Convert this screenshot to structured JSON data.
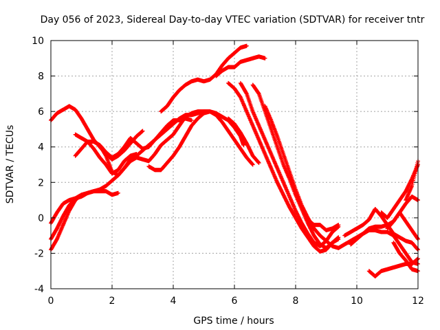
{
  "chart_data": {
    "type": "scatter",
    "title": "Day 056 of 2023, Sidereal Day-to-day VTEC variation (SDTVAR) for receiver tntr",
    "xlabel": "GPS time / hours",
    "ylabel": "SDTVAR / TECUs",
    "xlim": [
      0,
      12
    ],
    "ylim": [
      -4,
      10
    ],
    "x_ticks": [
      0,
      2,
      4,
      6,
      8,
      10,
      12
    ],
    "y_ticks": [
      -4,
      -2,
      0,
      2,
      4,
      6,
      8,
      10
    ],
    "x_tick_labels": [
      "0",
      "2",
      "4",
      "6",
      "8",
      "10",
      "12"
    ],
    "y_tick_labels": [
      "-4",
      "-2",
      "0",
      "2",
      "4",
      "6",
      "8",
      "10"
    ],
    "grid": true,
    "marker": "+",
    "marker_color": "#ff0000",
    "series": [
      {
        "points": [
          [
            0.0,
            5.5
          ],
          [
            0.2,
            5.9
          ],
          [
            0.4,
            6.1
          ],
          [
            0.6,
            6.3
          ],
          [
            0.8,
            6.1
          ],
          [
            1.0,
            5.6
          ],
          [
            1.2,
            5.0
          ],
          [
            1.4,
            4.4
          ],
          [
            1.6,
            4.0
          ],
          [
            1.8,
            3.6
          ],
          [
            2.0,
            3.3
          ],
          [
            2.2,
            3.5
          ],
          [
            2.4,
            3.8
          ],
          [
            2.6,
            4.2
          ],
          [
            2.8,
            4.6
          ],
          [
            3.0,
            4.9
          ]
        ]
      },
      {
        "points": [
          [
            0.0,
            -1.2
          ],
          [
            0.2,
            -0.6
          ],
          [
            0.4,
            0.1
          ],
          [
            0.6,
            0.7
          ],
          [
            0.8,
            1.1
          ],
          [
            1.0,
            1.3
          ],
          [
            1.2,
            1.4
          ],
          [
            1.4,
            1.5
          ],
          [
            1.6,
            1.5
          ],
          [
            1.8,
            1.5
          ],
          [
            2.0,
            1.3
          ],
          [
            2.2,
            1.4
          ]
        ]
      },
      {
        "points": [
          [
            0.0,
            -1.8
          ],
          [
            0.2,
            -1.2
          ],
          [
            0.4,
            -0.4
          ],
          [
            0.6,
            0.4
          ],
          [
            0.8,
            1.0
          ],
          [
            1.0,
            1.3
          ]
        ]
      },
      {
        "points": [
          [
            0.0,
            -0.3
          ],
          [
            0.2,
            0.3
          ],
          [
            0.4,
            0.8
          ],
          [
            0.6,
            1.0
          ],
          [
            0.8,
            1.1
          ],
          [
            1.0,
            1.2
          ],
          [
            1.2,
            1.4
          ],
          [
            1.4,
            1.5
          ],
          [
            1.6,
            1.6
          ],
          [
            1.8,
            1.8
          ],
          [
            2.0,
            2.1
          ],
          [
            2.2,
            2.4
          ],
          [
            2.4,
            2.8
          ],
          [
            2.6,
            3.2
          ],
          [
            2.8,
            3.4
          ],
          [
            3.0,
            3.3
          ],
          [
            3.2,
            3.2
          ],
          [
            3.4,
            3.6
          ],
          [
            3.6,
            4.1
          ],
          [
            3.8,
            4.4
          ],
          [
            4.0,
            4.7
          ],
          [
            4.2,
            5.2
          ],
          [
            4.4,
            5.7
          ],
          [
            4.6,
            5.9
          ],
          [
            4.8,
            6.0
          ],
          [
            5.0,
            6.0
          ],
          [
            5.2,
            6.0
          ],
          [
            5.4,
            5.8
          ],
          [
            5.6,
            5.4
          ],
          [
            5.8,
            4.9
          ],
          [
            6.0,
            4.4
          ],
          [
            6.2,
            3.9
          ],
          [
            6.4,
            3.4
          ],
          [
            6.6,
            3.0
          ]
        ]
      },
      {
        "points": [
          [
            0.8,
            3.5
          ],
          [
            1.0,
            3.9
          ],
          [
            1.2,
            4.3
          ],
          [
            1.4,
            4.3
          ],
          [
            1.6,
            4.1
          ],
          [
            1.8,
            3.5
          ],
          [
            2.0,
            2.6
          ],
          [
            2.2,
            2.4
          ],
          [
            2.4,
            2.8
          ],
          [
            2.6,
            3.3
          ],
          [
            2.8,
            3.5
          ],
          [
            3.0,
            3.8
          ],
          [
            3.2,
            4.1
          ],
          [
            3.4,
            4.4
          ],
          [
            3.6,
            4.8
          ],
          [
            3.8,
            5.2
          ],
          [
            4.0,
            5.5
          ],
          [
            4.2,
            5.5
          ],
          [
            4.4,
            5.6
          ],
          [
            4.6,
            5.5
          ]
        ]
      },
      {
        "points": [
          [
            0.8,
            4.7
          ],
          [
            1.0,
            4.5
          ],
          [
            1.2,
            4.3
          ],
          [
            1.4,
            3.9
          ],
          [
            1.6,
            3.4
          ],
          [
            1.8,
            3.0
          ],
          [
            2.0,
            2.5
          ],
          [
            2.2,
            2.7
          ],
          [
            2.4,
            3.2
          ],
          [
            2.6,
            3.5
          ],
          [
            2.8,
            3.6
          ]
        ]
      },
      {
        "points": [
          [
            1.6,
            4.1
          ],
          [
            1.8,
            3.7
          ],
          [
            2.0,
            3.4
          ],
          [
            2.2,
            3.6
          ],
          [
            2.4,
            4.0
          ],
          [
            2.6,
            4.5
          ],
          [
            2.8,
            4.2
          ],
          [
            3.0,
            3.9
          ],
          [
            3.2,
            4.0
          ],
          [
            3.4,
            4.4
          ],
          [
            3.6,
            4.7
          ],
          [
            3.8,
            5.0
          ],
          [
            4.0,
            5.3
          ],
          [
            4.2,
            5.6
          ],
          [
            4.4,
            5.8
          ],
          [
            4.6,
            5.8
          ],
          [
            4.8,
            5.9
          ],
          [
            5.0,
            6.0
          ],
          [
            5.2,
            6.0
          ],
          [
            5.4,
            5.9
          ],
          [
            5.6,
            5.7
          ],
          [
            5.8,
            5.5
          ],
          [
            6.0,
            5.1
          ],
          [
            6.2,
            4.6
          ],
          [
            6.3,
            4.1
          ]
        ]
      },
      {
        "points": [
          [
            3.6,
            6.0
          ],
          [
            3.8,
            6.3
          ],
          [
            4.0,
            6.8
          ],
          [
            4.2,
            7.2
          ],
          [
            4.4,
            7.5
          ],
          [
            4.6,
            7.7
          ],
          [
            4.8,
            7.8
          ],
          [
            5.0,
            7.7
          ],
          [
            5.2,
            7.8
          ],
          [
            5.4,
            8.1
          ],
          [
            5.6,
            8.6
          ],
          [
            5.8,
            9.0
          ],
          [
            6.0,
            9.3
          ],
          [
            6.2,
            9.6
          ],
          [
            6.4,
            9.7
          ]
        ]
      },
      {
        "points": [
          [
            5.4,
            8.0
          ],
          [
            5.6,
            8.3
          ],
          [
            5.8,
            8.5
          ],
          [
            6.0,
            8.5
          ],
          [
            6.2,
            8.8
          ],
          [
            6.4,
            8.9
          ],
          [
            6.6,
            9.0
          ],
          [
            6.8,
            9.1
          ],
          [
            7.0,
            9.0
          ]
        ]
      },
      {
        "points": [
          [
            3.2,
            2.9
          ],
          [
            3.4,
            2.7
          ],
          [
            3.6,
            2.7
          ],
          [
            3.8,
            3.1
          ],
          [
            4.0,
            3.5
          ],
          [
            4.2,
            4.0
          ],
          [
            4.4,
            4.6
          ],
          [
            4.6,
            5.2
          ],
          [
            4.8,
            5.6
          ],
          [
            5.0,
            5.9
          ],
          [
            5.2,
            6.0
          ]
        ]
      },
      {
        "points": [
          [
            5.8,
            5.6
          ],
          [
            6.0,
            5.3
          ],
          [
            6.2,
            4.8
          ],
          [
            6.4,
            4.2
          ],
          [
            6.6,
            3.5
          ],
          [
            6.8,
            3.1
          ]
        ]
      },
      {
        "points": [
          [
            6.6,
            7.5
          ],
          [
            6.8,
            7.0
          ],
          [
            7.0,
            6.0
          ],
          [
            7.2,
            5.0
          ],
          [
            7.4,
            4.0
          ],
          [
            7.6,
            3.0
          ],
          [
            7.8,
            2.2
          ],
          [
            8.0,
            1.3
          ],
          [
            8.2,
            0.5
          ],
          [
            8.4,
            -0.3
          ],
          [
            8.6,
            -1.0
          ],
          [
            8.8,
            -1.5
          ],
          [
            9.0,
            -1.7
          ],
          [
            9.2,
            -1.4
          ],
          [
            9.4,
            -1.2
          ]
        ]
      },
      {
        "points": [
          [
            5.8,
            7.6
          ],
          [
            6.0,
            7.3
          ],
          [
            6.2,
            6.8
          ],
          [
            6.4,
            6.0
          ],
          [
            6.6,
            5.2
          ],
          [
            6.8,
            4.4
          ],
          [
            7.0,
            3.6
          ],
          [
            7.2,
            2.8
          ],
          [
            7.4,
            2.0
          ],
          [
            7.6,
            1.3
          ],
          [
            7.8,
            0.6
          ],
          [
            8.0,
            0.0
          ],
          [
            8.2,
            -0.6
          ],
          [
            8.4,
            -1.1
          ],
          [
            8.6,
            -1.6
          ],
          [
            8.8,
            -1.9
          ],
          [
            9.0,
            -1.8
          ],
          [
            9.2,
            -1.4
          ],
          [
            9.4,
            -1.1
          ]
        ]
      },
      {
        "points": [
          [
            6.2,
            7.6
          ],
          [
            6.4,
            7.0
          ],
          [
            6.6,
            6.0
          ],
          [
            6.8,
            5.2
          ],
          [
            7.0,
            4.4
          ],
          [
            7.2,
            3.6
          ],
          [
            7.4,
            2.8
          ],
          [
            7.6,
            2.0
          ],
          [
            7.8,
            1.2
          ],
          [
            8.0,
            0.4
          ],
          [
            8.2,
            -0.3
          ],
          [
            8.4,
            -0.9
          ],
          [
            8.6,
            -1.4
          ],
          [
            8.8,
            -1.6
          ],
          [
            9.0,
            -1.3
          ],
          [
            9.2,
            -0.8
          ],
          [
            9.4,
            -0.5
          ]
        ]
      },
      {
        "points": [
          [
            7.0,
            6.3
          ],
          [
            7.2,
            5.5
          ],
          [
            7.4,
            4.6
          ],
          [
            7.6,
            3.6
          ],
          [
            7.8,
            2.6
          ],
          [
            8.0,
            1.6
          ],
          [
            8.2,
            0.7
          ],
          [
            8.4,
            0.0
          ],
          [
            8.6,
            -0.6
          ],
          [
            8.8,
            -1.0
          ],
          [
            9.0,
            -1.3
          ],
          [
            9.2,
            -1.6
          ],
          [
            9.4,
            -1.7
          ]
        ]
      },
      {
        "points": [
          [
            8.4,
            -0.1
          ],
          [
            8.6,
            -0.4
          ],
          [
            8.8,
            -0.4
          ],
          [
            9.0,
            -0.7
          ],
          [
            9.2,
            -0.6
          ],
          [
            9.4,
            -0.4
          ]
        ]
      },
      {
        "points": [
          [
            9.4,
            -1.7
          ],
          [
            9.6,
            -1.5
          ],
          [
            9.8,
            -1.3
          ],
          [
            10.0,
            -1.1
          ],
          [
            10.2,
            -0.9
          ],
          [
            10.4,
            -0.7
          ],
          [
            10.6,
            -0.7
          ],
          [
            10.8,
            -0.8
          ],
          [
            11.0,
            -0.8
          ],
          [
            11.2,
            -1.0
          ],
          [
            11.4,
            -1.5
          ],
          [
            11.6,
            -2.0
          ],
          [
            11.8,
            -2.5
          ],
          [
            12.0,
            -2.6
          ]
        ]
      },
      {
        "points": [
          [
            9.6,
            -1.0
          ],
          [
            9.8,
            -0.8
          ],
          [
            10.0,
            -0.6
          ],
          [
            10.2,
            -0.4
          ],
          [
            10.4,
            -0.1
          ],
          [
            10.6,
            0.5
          ],
          [
            10.8,
            0.1
          ],
          [
            11.0,
            -0.4
          ],
          [
            11.2,
            -0.9
          ],
          [
            11.4,
            -1.1
          ],
          [
            11.6,
            -1.3
          ],
          [
            11.8,
            -1.4
          ],
          [
            12.0,
            -1.8
          ]
        ]
      },
      {
        "points": [
          [
            9.8,
            -1.5
          ],
          [
            10.0,
            -1.2
          ],
          [
            10.2,
            -0.9
          ],
          [
            10.4,
            -0.6
          ],
          [
            10.6,
            -0.5
          ],
          [
            10.8,
            -0.5
          ],
          [
            11.0,
            -0.4
          ],
          [
            11.2,
            -0.2
          ],
          [
            11.4,
            0.3
          ],
          [
            11.6,
            0.8
          ],
          [
            11.8,
            1.2
          ],
          [
            12.0,
            1.0
          ]
        ]
      },
      {
        "points": [
          [
            10.4,
            -3.0
          ],
          [
            10.6,
            -3.3
          ],
          [
            10.8,
            -3.0
          ],
          [
            11.0,
            -2.9
          ],
          [
            11.2,
            -2.8
          ],
          [
            11.4,
            -2.7
          ],
          [
            11.6,
            -2.6
          ],
          [
            11.8,
            -2.6
          ],
          [
            12.0,
            -2.3
          ]
        ]
      },
      {
        "points": [
          [
            10.8,
            0.3
          ],
          [
            11.0,
            0.0
          ],
          [
            11.2,
            0.5
          ],
          [
            11.4,
            1.0
          ],
          [
            11.6,
            1.5
          ],
          [
            11.8,
            2.2
          ],
          [
            12.0,
            3.0
          ]
        ]
      },
      {
        "points": [
          [
            11.0,
            -0.6
          ],
          [
            11.2,
            -0.2
          ],
          [
            11.4,
            0.3
          ],
          [
            11.6,
            -0.2
          ],
          [
            11.8,
            -0.7
          ],
          [
            12.0,
            -1.2
          ]
        ]
      },
      {
        "points": [
          [
            11.6,
            1.0
          ],
          [
            11.8,
            1.8
          ],
          [
            12.0,
            3.2
          ]
        ]
      },
      {
        "points": [
          [
            11.2,
            -1.4
          ],
          [
            11.4,
            -2.0
          ],
          [
            11.6,
            -2.4
          ],
          [
            11.8,
            -2.9
          ],
          [
            12.0,
            -3.0
          ]
        ]
      }
    ]
  }
}
